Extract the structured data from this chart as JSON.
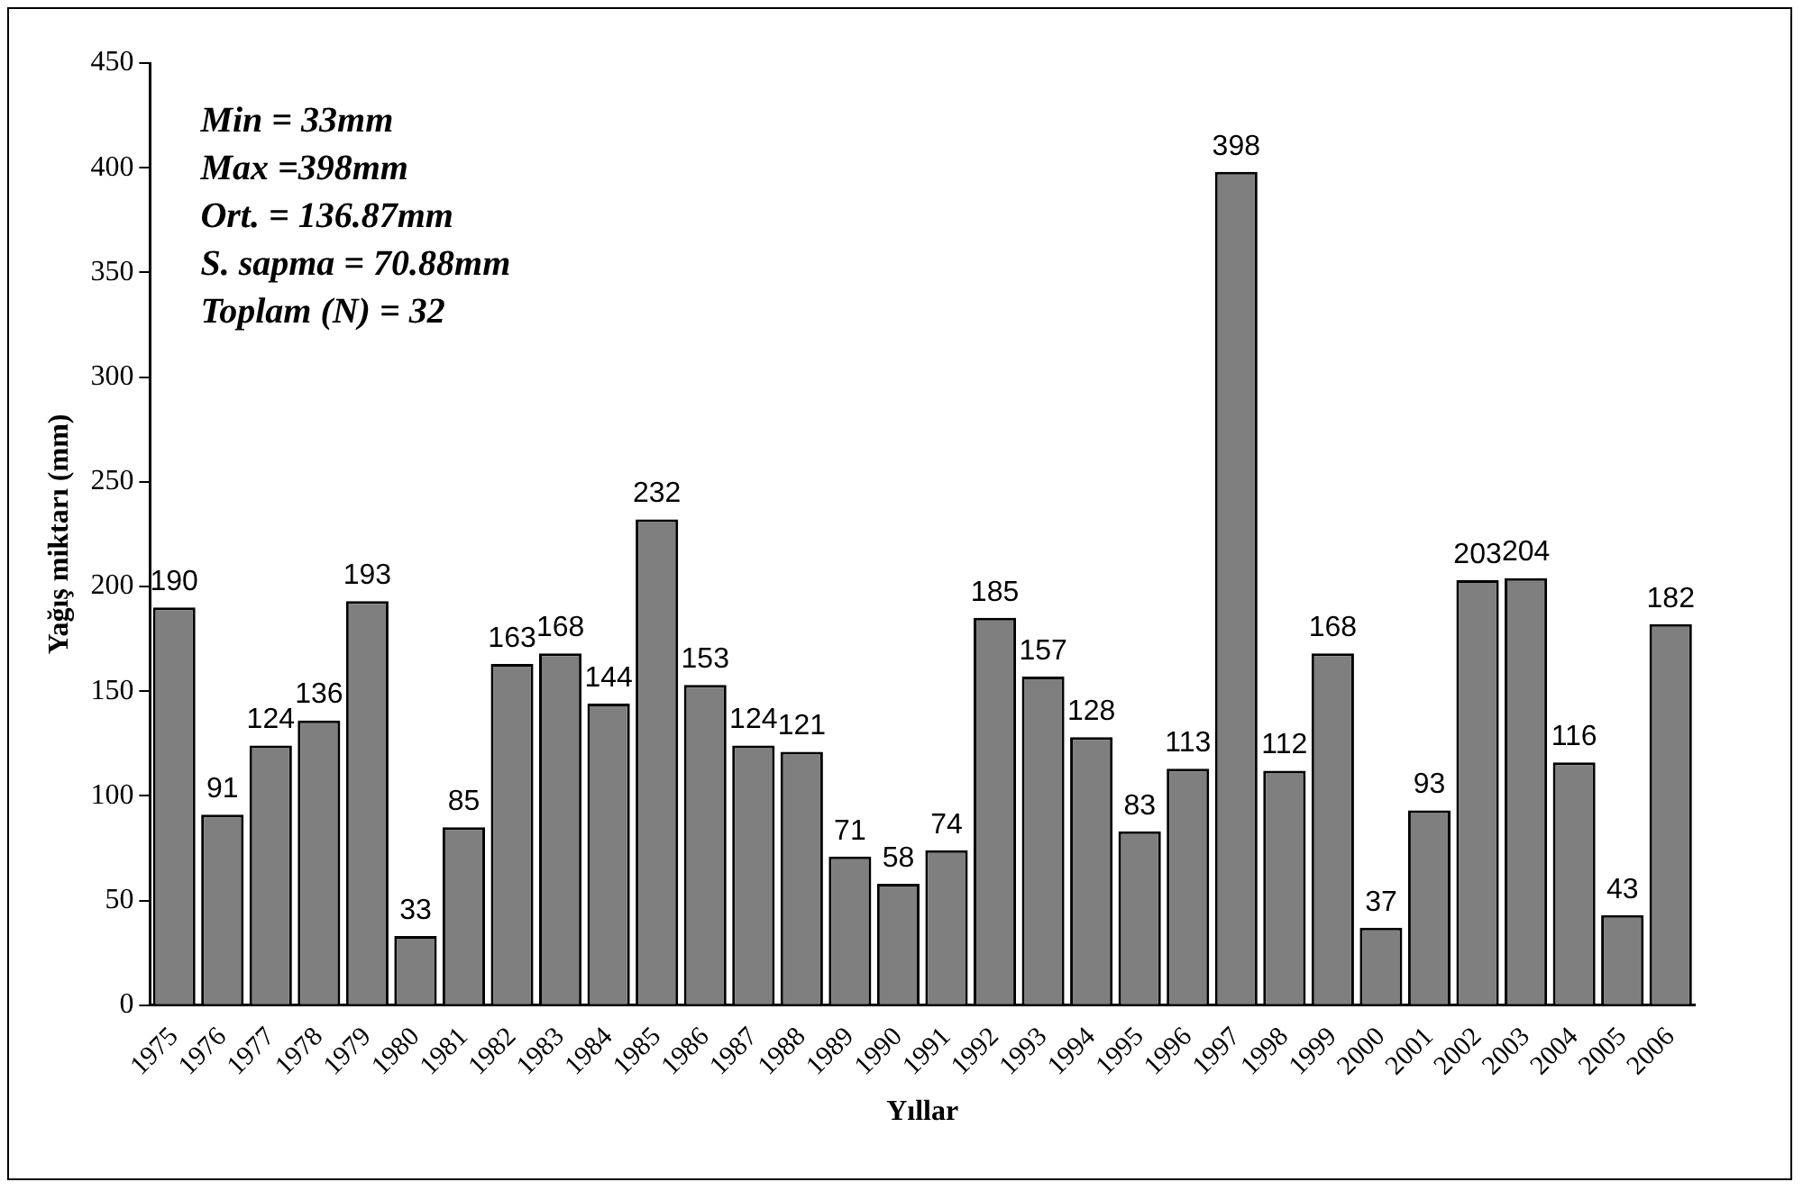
{
  "chart_data": {
    "type": "bar",
    "xlabel": "Yıllar",
    "ylabel": "Yağış miktarı (mm)",
    "categories": [
      "1975",
      "1976",
      "1977",
      "1978",
      "1979",
      "1980",
      "1981",
      "1982",
      "1983",
      "1984",
      "1985",
      "1986",
      "1987",
      "1988",
      "1989",
      "1990",
      "1991",
      "1992",
      "1993",
      "1994",
      "1995",
      "1996",
      "1997",
      "1998",
      "1999",
      "2000",
      "2001",
      "2002",
      "2003",
      "2004",
      "2005",
      "2006"
    ],
    "values": [
      190,
      91,
      124,
      136,
      193,
      33,
      85,
      163,
      168,
      144,
      232,
      153,
      124,
      121,
      71,
      58,
      74,
      185,
      157,
      128,
      83,
      113,
      398,
      112,
      168,
      37,
      93,
      203,
      204,
      116,
      43,
      182
    ],
    "color": "#7f7f7f",
    "ylim": [
      0,
      450
    ],
    "yticks": [
      0,
      50,
      100,
      150,
      200,
      250,
      300,
      350,
      400,
      450
    ],
    "grid": false,
    "legend": false,
    "data_labels": true,
    "annotations": [
      "Min = 33mm",
      "Max =398mm",
      "Ort. = 136.87mm",
      "S. sapma = 70.88mm",
      "Toplam (N) = 32"
    ]
  }
}
